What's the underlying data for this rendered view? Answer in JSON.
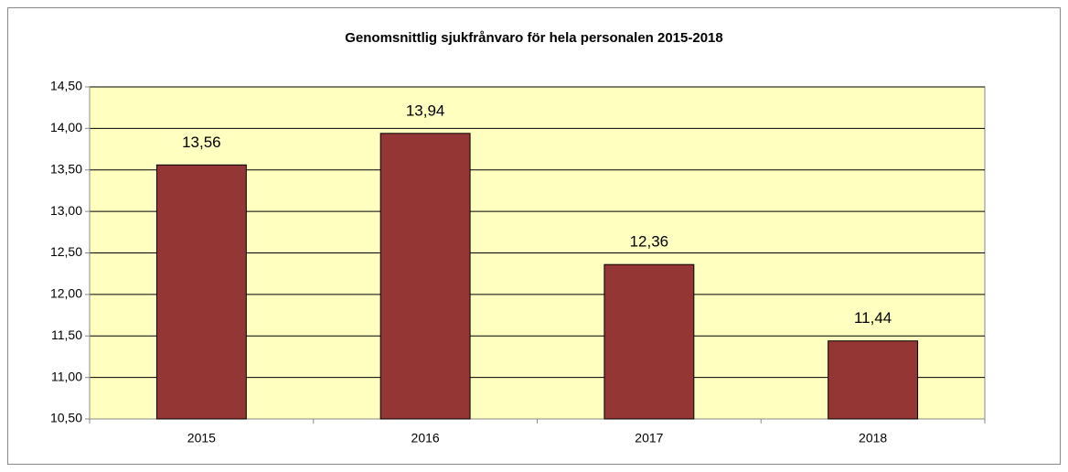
{
  "chart_data": {
    "type": "bar",
    "title": "Genomsnittlig sjukfrånvaro  för hela personalen 2015-2018",
    "categories": [
      "2015",
      "2016",
      "2017",
      "2018"
    ],
    "values": [
      13.56,
      13.94,
      12.36,
      11.44
    ],
    "value_labels": [
      "13,56",
      "13,94",
      "12,36",
      "11,44"
    ],
    "color": "#943634",
    "ylim": [
      10.5,
      14.5
    ],
    "yticks": [
      {
        "value": 10.5,
        "label": "10,50"
      },
      {
        "value": 11,
        "label": "11,00"
      },
      {
        "value": 11.5,
        "label": "11,50"
      },
      {
        "value": 12,
        "label": "12,00"
      },
      {
        "value": 12.5,
        "label": "12,50"
      },
      {
        "value": 13,
        "label": "13,00"
      },
      {
        "value": 13.5,
        "label": "13,50"
      },
      {
        "value": 14,
        "label": "14,00"
      },
      {
        "value": 14.5,
        "label": "14,50"
      }
    ],
    "grid": true
  }
}
